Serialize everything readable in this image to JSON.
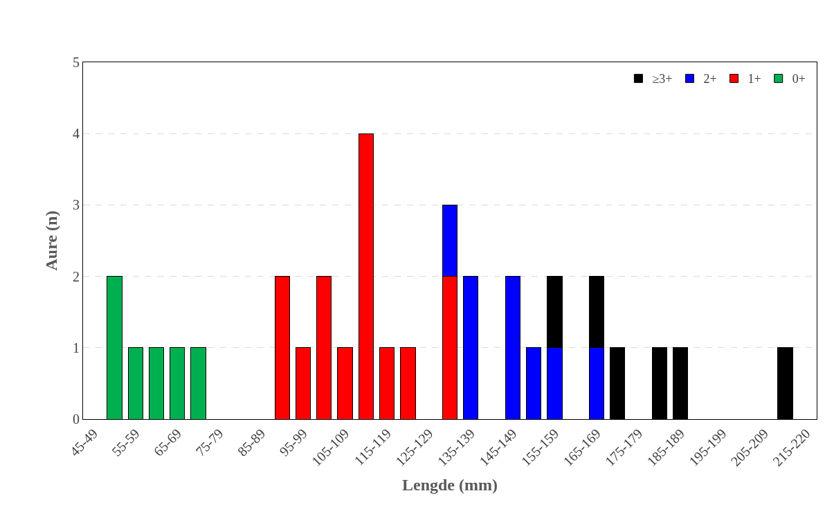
{
  "chart_data": {
    "type": "bar",
    "stacked": true,
    "xlabel": "Lengde (mm)",
    "ylabel": "Aure (n)",
    "categories": [
      "45-49",
      null,
      "55-59",
      null,
      "65-69",
      null,
      "75-79",
      null,
      "85-89",
      null,
      "95-99",
      null,
      "105-109",
      null,
      "115-119",
      null,
      "125-129",
      null,
      "135-139",
      null,
      "145-149",
      null,
      "155-159",
      null,
      "165-169",
      null,
      "175-179",
      null,
      "185-189",
      null,
      "195-199",
      null,
      "205-209",
      null,
      "215-220"
    ],
    "series": [
      {
        "name": "0+",
        "color": "#00b050",
        "values": [
          null,
          2,
          1,
          1,
          1,
          1,
          null,
          null,
          null,
          null,
          null,
          null,
          null,
          null,
          null,
          null,
          null,
          null,
          null,
          null,
          null,
          null,
          null,
          null,
          null,
          null,
          null,
          null,
          null,
          null,
          null,
          null,
          null,
          null,
          null
        ]
      },
      {
        "name": "1+",
        "color": "#ff0000",
        "values": [
          null,
          null,
          null,
          null,
          null,
          null,
          null,
          null,
          null,
          2,
          1,
          2,
          1,
          4,
          1,
          1,
          null,
          2,
          null,
          null,
          null,
          null,
          null,
          null,
          null,
          null,
          null,
          null,
          null,
          null,
          null,
          null,
          null,
          null,
          null
        ]
      },
      {
        "name": "2+",
        "color": "#0000ff",
        "values": [
          null,
          null,
          null,
          null,
          null,
          null,
          null,
          null,
          null,
          null,
          null,
          null,
          null,
          null,
          null,
          null,
          null,
          1,
          2,
          null,
          2,
          1,
          1,
          null,
          1,
          null,
          null,
          null,
          null,
          null,
          null,
          null,
          null,
          null,
          null
        ]
      },
      {
        "name": "≥3+",
        "color": "#000000",
        "values": [
          null,
          null,
          null,
          null,
          null,
          null,
          null,
          null,
          null,
          null,
          null,
          null,
          null,
          null,
          null,
          null,
          null,
          null,
          null,
          null,
          null,
          null,
          1,
          null,
          1,
          1,
          null,
          1,
          1,
          null,
          null,
          null,
          null,
          1,
          null
        ]
      }
    ],
    "ylim": [
      0,
      5
    ],
    "yticks": [
      0,
      1,
      2,
      3,
      4,
      5
    ],
    "grid": "y",
    "legend": "top right"
  }
}
